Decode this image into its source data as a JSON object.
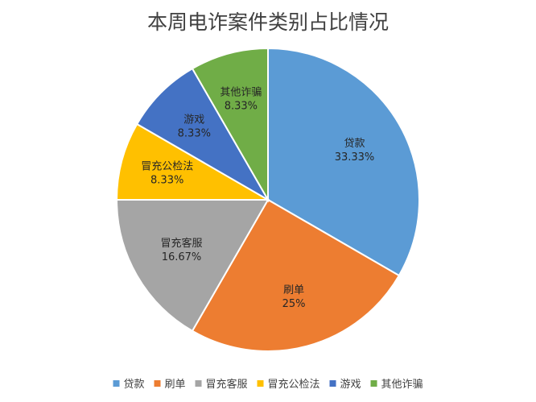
{
  "chart_data": {
    "type": "pie",
    "title": "本周电诈案件类别占比情况",
    "legend_position": "bottom",
    "slices": [
      {
        "name": "贷款",
        "value": 33.33,
        "label": "33.33%",
        "color": "#5B9BD5"
      },
      {
        "name": "刷单",
        "value": 25,
        "label": "25%",
        "color": "#ED7D31"
      },
      {
        "name": "冒充客服",
        "value": 16.67,
        "label": "16.67%",
        "color": "#A5A5A5"
      },
      {
        "name": "冒充公检法",
        "value": 8.33,
        "label": "8.33%",
        "color": "#FFC000"
      },
      {
        "name": "游戏",
        "value": 8.33,
        "label": "8.33%",
        "color": "#4472C4"
      },
      {
        "name": "其他诈骗",
        "value": 8.33,
        "label": "8.33%",
        "color": "#70AD47"
      }
    ]
  }
}
